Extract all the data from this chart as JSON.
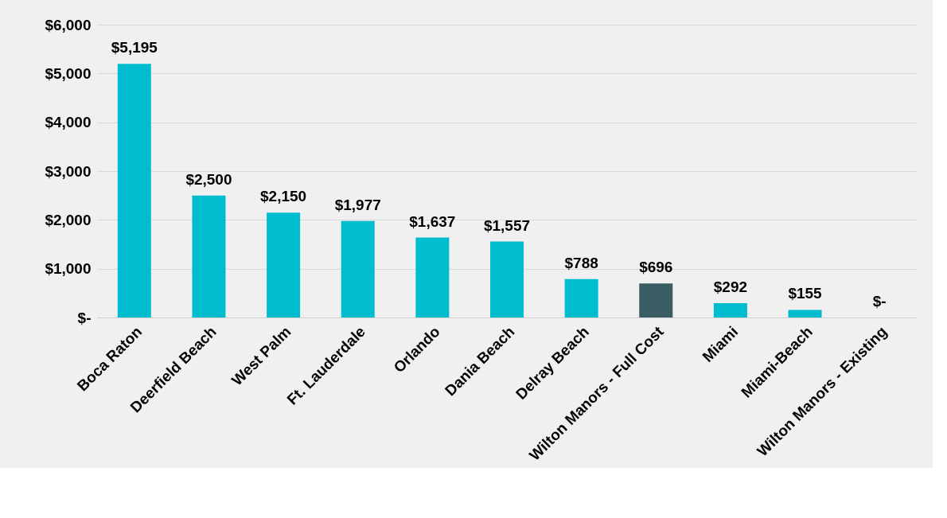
{
  "chart_data": {
    "type": "bar",
    "categories": [
      "Boca Raton",
      "Deerfield Beach",
      "West Palm",
      "Ft. Lauderdale",
      "Orlando",
      "Dania Beach",
      "Delray Beach",
      "Wilton Manors - Full Cost",
      "Miami",
      "Miami-Beach",
      "Wilton Manors - Existing"
    ],
    "values": [
      5195,
      2500,
      2150,
      1977,
      1637,
      1557,
      788,
      696,
      292,
      155,
      0
    ],
    "colors": [
      "#00bccf",
      "#00bccf",
      "#00bccf",
      "#00bccf",
      "#00bccf",
      "#00bccf",
      "#00bccf",
      "#3a5d63",
      "#00bccf",
      "#00bccf",
      "#00bccf"
    ],
    "value_labels": [
      "$5,195",
      "$2,500",
      "$2,150",
      "$1,977",
      "$1,637",
      "$1,557",
      "$788",
      "$696",
      "$292",
      "$155",
      "$-"
    ],
    "ylim": [
      0,
      6000
    ],
    "yticks": [
      {
        "value": 0,
        "label": "$-"
      },
      {
        "value": 1000,
        "label": "$1,000"
      },
      {
        "value": 2000,
        "label": "$2,000"
      },
      {
        "value": 3000,
        "label": "$3,000"
      },
      {
        "value": 4000,
        "label": "$4,000"
      },
      {
        "value": 5000,
        "label": "$5,000"
      },
      {
        "value": 6000,
        "label": "$6,000"
      }
    ],
    "grid": "y"
  }
}
